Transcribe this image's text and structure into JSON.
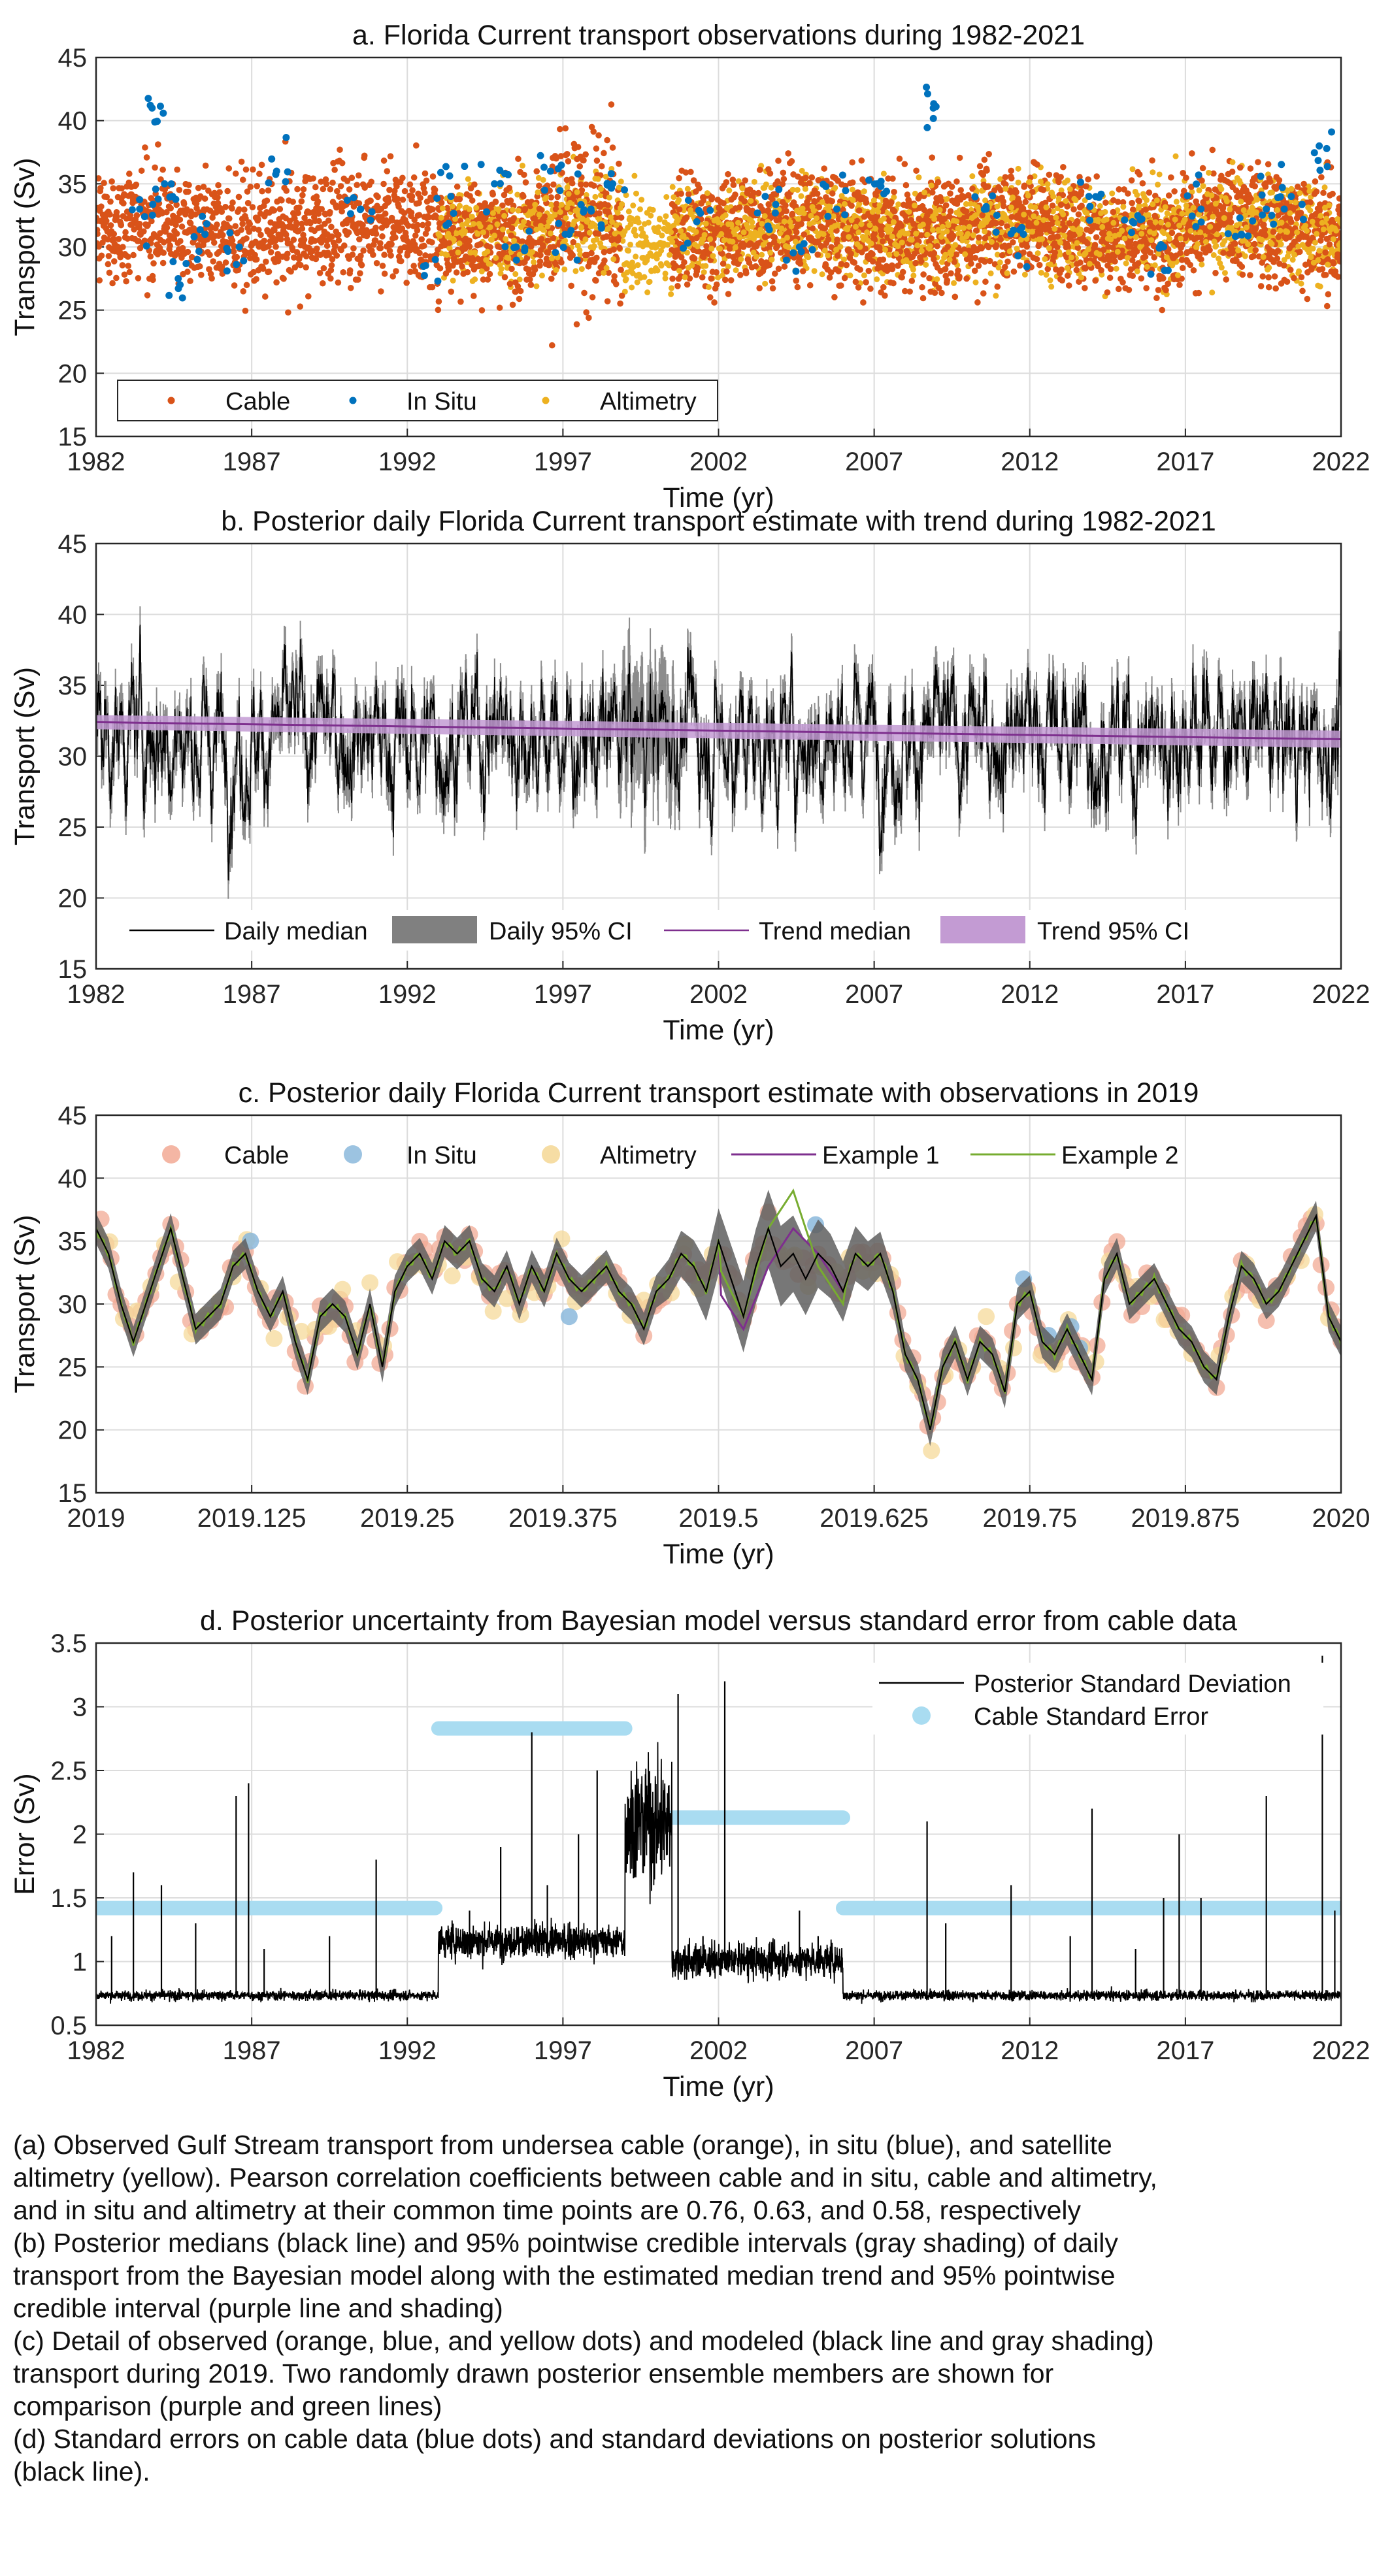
{
  "colors": {
    "cable": "#d95319",
    "insitu": "#0072bd",
    "altimetry": "#edb120",
    "daily_median": "#000000",
    "daily_ci": "#808080",
    "trend_median": "#7e2f8e",
    "trend_ci": "#c39bd3",
    "example1": "#7e2f8e",
    "example2": "#77ac30",
    "cable_se": "#a9dcf1",
    "grid": "#dcdcdc"
  },
  "chart_data": [
    {
      "id": "a",
      "type": "scatter",
      "title": "a. Florida Current transport observations during 1982-2021",
      "xlabel": "Time (yr)",
      "ylabel": "Transport (Sv)",
      "xlim": [
        1982,
        2022
      ],
      "ylim": [
        15,
        45
      ],
      "xticks": [
        1982,
        1987,
        1992,
        1997,
        2002,
        2007,
        2012,
        2017,
        2022
      ],
      "yticks": [
        15,
        20,
        25,
        30,
        35,
        40,
        45
      ],
      "grid": true,
      "legend_position": "bottom-left",
      "legend": [
        "Cable",
        "In Situ",
        "Altimetry"
      ],
      "series": [
        {
          "name": "Cable",
          "coverage": [
            [
              1982.0,
              1998.9
            ],
            [
              2000.5,
              2022.0
            ]
          ],
          "typical_range": [
            24,
            40
          ]
        },
        {
          "name": "In Situ",
          "x": [
            1983.4,
            1983.8,
            1984.2,
            1984.7,
            1985.5,
            1986.6,
            1987.8,
            1990.5,
            1992.9,
            1993.4,
            1994.8,
            1995.5,
            1996.6,
            1997.2,
            1997.9,
            1998.6,
            2001.3,
            2003.5,
            2004.6,
            2005.8,
            2007.1,
            2008.9,
            2010.6,
            2011.8,
            2013.9,
            2015.3,
            2016.3,
            2017.5,
            2018.8,
            2019.6,
            2020.4,
            2021.3
          ],
          "y": [
            33,
            41,
            35,
            27,
            31,
            30,
            36,
            33,
            29,
            34,
            35,
            30,
            36,
            31,
            33,
            35,
            32,
            34,
            30,
            33,
            35,
            41,
            33,
            31,
            34,
            32,
            30,
            33,
            31,
            33,
            34,
            38
          ]
        },
        {
          "name": "Altimetry",
          "coverage": [
            [
              1993.0,
              2022.0
            ]
          ],
          "typical_range": [
            25,
            37
          ]
        }
      ]
    },
    {
      "id": "b",
      "type": "line",
      "title": "b. Posterior daily Florida Current transport estimate with trend during 1982-2021",
      "xlabel": "Time (yr)",
      "ylabel": "Transport (Sv)",
      "xlim": [
        1982,
        2022
      ],
      "ylim": [
        15,
        45
      ],
      "xticks": [
        1982,
        1987,
        1992,
        1997,
        2002,
        2007,
        2012,
        2017,
        2022
      ],
      "yticks": [
        15,
        20,
        25,
        30,
        35,
        40,
        45
      ],
      "grid": true,
      "legend_position": "bottom",
      "legend": [
        "Daily median",
        "Daily 95% CI",
        "Trend median",
        "Trend 95% CI"
      ],
      "trend": {
        "x": [
          1982,
          2022
        ],
        "median": [
          32.4,
          31.2
        ],
        "ci_low": [
          31.9,
          30.6
        ],
        "ci_high": [
          32.9,
          31.8
        ]
      },
      "daily_median_envelope": {
        "x": [
          1982,
          1987,
          1992,
          1997,
          2002,
          2007,
          2012,
          2017,
          2022
        ],
        "typical_range": [
          25,
          38
        ],
        "extremes": [
          19,
          42
        ]
      }
    },
    {
      "id": "c",
      "type": "line",
      "title": "c. Posterior daily Florida Current transport estimate with observations in 2019",
      "xlabel": "Time (yr)",
      "ylabel": "Transport (Sv)",
      "xlim": [
        2019,
        2020
      ],
      "ylim": [
        15,
        45
      ],
      "xticks": [
        "2019",
        "2019.125",
        "2019.25",
        "2019.375",
        "2019.5",
        "2019.625",
        "2019.75",
        "2019.875",
        "2020"
      ],
      "yticks": [
        15,
        20,
        25,
        30,
        35,
        40,
        45
      ],
      "grid": true,
      "legend_position": "top",
      "legend": [
        "Cable",
        "In Situ",
        "Altimetry",
        "Example 1",
        "Example 2"
      ],
      "median": {
        "x": [
          2019.0,
          2019.01,
          2019.02,
          2019.03,
          2019.04,
          2019.05,
          2019.06,
          2019.07,
          2019.08,
          2019.09,
          2019.1,
          2019.11,
          2019.12,
          2019.13,
          2019.14,
          2019.15,
          2019.16,
          2019.17,
          2019.18,
          2019.19,
          2019.2,
          2019.21,
          2019.22,
          2019.23,
          2019.24,
          2019.25,
          2019.26,
          2019.27,
          2019.28,
          2019.29,
          2019.3,
          2019.31,
          2019.32,
          2019.33,
          2019.34,
          2019.35,
          2019.36,
          2019.37,
          2019.38,
          2019.39,
          2019.4,
          2019.41,
          2019.42,
          2019.43,
          2019.44,
          2019.45,
          2019.46,
          2019.47,
          2019.48,
          2019.49,
          2019.5,
          2019.51,
          2019.52,
          2019.53,
          2019.54,
          2019.55,
          2019.56,
          2019.57,
          2019.58,
          2019.59,
          2019.6,
          2019.61,
          2019.62,
          2019.63,
          2019.64,
          2019.65,
          2019.66,
          2019.67,
          2019.68,
          2019.69,
          2019.7,
          2019.71,
          2019.72,
          2019.73,
          2019.74,
          2019.75,
          2019.76,
          2019.77,
          2019.78,
          2019.79,
          2019.8,
          2019.81,
          2019.82,
          2019.83,
          2019.84,
          2019.85,
          2019.86,
          2019.87,
          2019.88,
          2019.89,
          2019.9,
          2019.91,
          2019.92,
          2019.93,
          2019.94,
          2019.95,
          2019.96,
          2019.97,
          2019.98,
          2019.99,
          2020.0
        ],
        "y": [
          36,
          34,
          30,
          27,
          30,
          33,
          36,
          32,
          28,
          29,
          30,
          33,
          34,
          31,
          29,
          31,
          27,
          24,
          29,
          30,
          29,
          26,
          30,
          25,
          31,
          33,
          34,
          32,
          35,
          34,
          35,
          32,
          31,
          33,
          30,
          33,
          31,
          34,
          32,
          31,
          32,
          33,
          31,
          30,
          28,
          31,
          32,
          34,
          33,
          31,
          35,
          32,
          29,
          33,
          36,
          33,
          34,
          32,
          34,
          33,
          31,
          34,
          33,
          34,
          31,
          26,
          24,
          20,
          25,
          27,
          24,
          27,
          26,
          23,
          30,
          31,
          27,
          26,
          28,
          26,
          24,
          32,
          34,
          30,
          31,
          32,
          30,
          28,
          27,
          25,
          24,
          29,
          33,
          32,
          30,
          31,
          33,
          35,
          37,
          29,
          27
        ]
      },
      "ci_halfwidth": {
        "x": [
          2019.0,
          2019.45,
          2019.5,
          2019.55,
          2019.6,
          2019.65,
          2020.0
        ],
        "y": [
          1.2,
          1.3,
          2.6,
          3.2,
          2.4,
          1.3,
          1.2
        ]
      },
      "example_1": {
        "x": [
          2019.5,
          2019.52,
          2019.54,
          2019.56,
          2019.58,
          2019.6
        ],
        "y": [
          31,
          28,
          33,
          36,
          34,
          31
        ]
      },
      "example_2": {
        "x": [
          2019.5,
          2019.52,
          2019.54,
          2019.56,
          2019.58,
          2019.6
        ],
        "y": [
          33,
          29,
          36,
          39,
          33,
          30
        ]
      }
    },
    {
      "id": "d",
      "type": "line",
      "title": "d. Posterior uncertainty from Bayesian model versus standard error from cable data",
      "xlabel": "Time (yr)",
      "ylabel": "Error (Sv)",
      "xlim": [
        1982,
        2022
      ],
      "ylim": [
        0.5,
        3.5
      ],
      "xticks": [
        1982,
        1987,
        1992,
        1997,
        2002,
        2007,
        2012,
        2017,
        2022
      ],
      "yticks": [
        "0.5",
        "1",
        "1.5",
        "2",
        "2.5",
        "3",
        "3.5"
      ],
      "grid": true,
      "legend_position": "top-right",
      "legend": [
        "Posterior Standard Deviation",
        "Cable Standard Error"
      ],
      "cable_standard_error": [
        {
          "x": [
            1982.0,
            1992.9
          ],
          "y": 1.42
        },
        {
          "x": [
            1993.0,
            1999.0
          ],
          "y": 2.83
        },
        {
          "x": [
            2000.5,
            2006.0
          ],
          "y": 2.13
        },
        {
          "x": [
            2006.0,
            2022.0
          ],
          "y": 1.42
        }
      ],
      "posterior_sd_baseline": [
        {
          "x": [
            1982.0,
            1993.0
          ],
          "y": 0.72
        },
        {
          "x": [
            1993.0,
            1999.0
          ],
          "y": 1.1
        },
        {
          "x": [
            1999.0,
            2000.5
          ],
          "y": 2.1
        },
        {
          "x": [
            2000.5,
            2006.0
          ],
          "y": 0.95
        },
        {
          "x": [
            2006.0,
            2022.0
          ],
          "y": 0.72
        }
      ],
      "posterior_sd_spikes": {
        "x": [
          1982.5,
          1983.2,
          1984.1,
          1985.2,
          1986.5,
          1986.9,
          1987.4,
          1989.5,
          1991.0,
          1994.0,
          1995.0,
          1996.0,
          1996.5,
          1997.5,
          1998.1,
          2000.7,
          2001.5,
          2002.2,
          2003.1,
          2004.6,
          2005.2,
          2008.7,
          2009.3,
          2011.4,
          2013.3,
          2014.0,
          2015.4,
          2016.3,
          2016.8,
          2017.5,
          2019.6,
          2021.4,
          2021.8
        ],
        "y": [
          1.2,
          1.7,
          1.6,
          1.3,
          2.3,
          2.4,
          1.1,
          1.2,
          1.8,
          1.4,
          1.9,
          2.8,
          1.6,
          2.0,
          2.5,
          3.1,
          1.2,
          3.2,
          1.1,
          1.4,
          1.2,
          2.1,
          1.3,
          1.6,
          1.2,
          2.2,
          1.1,
          1.5,
          2.0,
          1.5,
          2.3,
          3.4,
          1.4
        ]
      }
    }
  ],
  "caption": {
    "lines": [
      "(a) Observed Gulf Stream transport from undersea cable (orange), in situ (blue), and satellite",
      "altimetry (yellow). Pearson correlation coefficients between cable and in situ, cable and altimetry,",
      "and in situ and altimetry at their common time points are 0.76, 0.63, and 0.58, respectively",
      "(b) Posterior medians (black line) and 95% pointwise credible intervals (gray shading) of daily",
      "transport from the Bayesian model along with the estimated median trend and 95% pointwise",
      "credible interval (purple line and shading)",
      "(c) Detail of observed (orange, blue, and yellow dots) and modeled (black line and gray shading)",
      "transport during 2019. Two randomly drawn posterior ensemble members are shown for",
      "comparison (purple and green lines)",
      "(d) Standard errors on cable data (blue dots) and standard deviations on posterior solutions",
      "(black line)."
    ]
  }
}
